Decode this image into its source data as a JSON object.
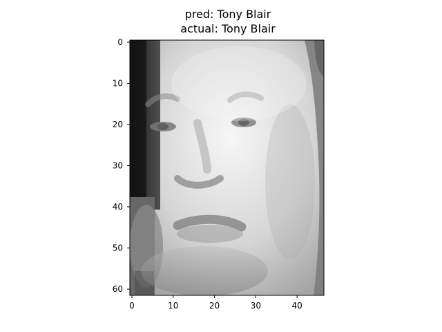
{
  "title": {
    "pred": "pred: Tony Blair",
    "actual": "actual: Tony Blair"
  },
  "image": {
    "description": "grayscale face crop",
    "rows": 62,
    "cols": 47
  },
  "axes": {
    "x_ticks": [
      "0",
      "10",
      "20",
      "30",
      "40"
    ],
    "y_ticks": [
      "0",
      "10",
      "20",
      "30",
      "40",
      "50",
      "60"
    ]
  },
  "colors": {
    "background": "#ffffff",
    "frame": "#000000"
  }
}
